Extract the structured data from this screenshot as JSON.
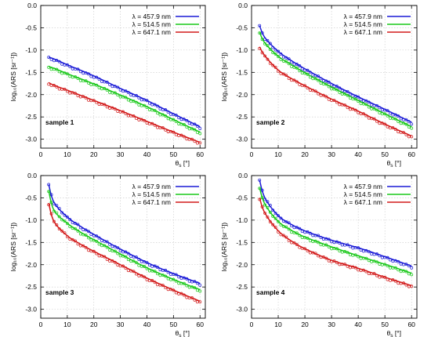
{
  "chart_data": [
    {
      "type": "scatter",
      "panel": "sample 1",
      "annotation": "sample 1",
      "xlabel": "θ",
      "xlabel_sub": "s",
      "xlabel_unit": " [°]",
      "ylabel": "log₁₀(ARS [sr⁻¹])",
      "xlim": [
        0,
        62
      ],
      "ylim": [
        -3.2,
        0.0
      ],
      "xticks": [
        0,
        10,
        20,
        30,
        40,
        50,
        60
      ],
      "yticks": [
        0.0,
        -0.5,
        -1.0,
        -1.5,
        -2.0,
        -2.5,
        -3.0
      ],
      "ytick_labels": [
        "0.0",
        "-0.5",
        "-1.0",
        "-1.5",
        "-2.0",
        "-2.5",
        "-3.0"
      ],
      "legend_position": "top-right",
      "series": [
        {
          "name": "λ = 457.9 nm",
          "color": "#1a1ad6",
          "x": [
            3,
            5,
            10,
            20,
            30,
            40,
            50,
            60
          ],
          "y": [
            -1.16,
            -1.2,
            -1.33,
            -1.58,
            -1.86,
            -2.13,
            -2.43,
            -2.72
          ]
        },
        {
          "name": "λ = 514.5 nm",
          "color": "#19c819",
          "x": [
            3,
            5,
            10,
            20,
            30,
            40,
            50,
            60
          ],
          "y": [
            -1.37,
            -1.41,
            -1.53,
            -1.76,
            -2.01,
            -2.27,
            -2.56,
            -2.84
          ]
        },
        {
          "name": "λ = 647.1 nm",
          "color": "#d21a1a",
          "x": [
            3,
            5,
            10,
            20,
            30,
            40,
            50,
            60
          ],
          "y": [
            -1.73,
            -1.79,
            -1.9,
            -2.13,
            -2.36,
            -2.6,
            -2.84,
            -3.07
          ]
        }
      ]
    },
    {
      "type": "scatter",
      "panel": "sample 2",
      "annotation": "sample 2",
      "xlabel": "θ",
      "xlabel_sub": "s",
      "xlabel_unit": " [°]",
      "ylabel": "log₁₀(ARS [sr⁻¹])",
      "xlim": [
        0,
        62
      ],
      "ylim": [
        -3.2,
        0.0
      ],
      "xticks": [
        0,
        10,
        20,
        30,
        40,
        50,
        60
      ],
      "yticks": [
        0.0,
        -0.5,
        -1.0,
        -1.5,
        -2.0,
        -2.5,
        -3.0
      ],
      "ytick_labels": [
        "0.0",
        "-0.5",
        "-1.0",
        "-1.5",
        "-2.0",
        "-2.5",
        "-3.0"
      ],
      "legend_position": "top-right",
      "series": [
        {
          "name": "λ = 457.9 nm",
          "color": "#1a1ad6",
          "x": [
            3,
            5,
            10,
            15,
            20,
            30,
            40,
            50,
            60
          ],
          "y": [
            -0.45,
            -0.72,
            -1.03,
            -1.24,
            -1.42,
            -1.75,
            -2.05,
            -2.33,
            -2.62
          ]
        },
        {
          "name": "λ = 514.5 nm",
          "color": "#19c819",
          "x": [
            3,
            5,
            10,
            15,
            20,
            30,
            40,
            50,
            60
          ],
          "y": [
            -0.6,
            -0.84,
            -1.14,
            -1.33,
            -1.51,
            -1.83,
            -2.13,
            -2.43,
            -2.72
          ]
        },
        {
          "name": "λ = 647.1 nm",
          "color": "#d21a1a",
          "x": [
            3,
            5,
            10,
            15,
            20,
            30,
            40,
            50,
            60
          ],
          "y": [
            -0.93,
            -1.13,
            -1.45,
            -1.64,
            -1.8,
            -2.1,
            -2.37,
            -2.66,
            -2.93
          ]
        }
      ]
    },
    {
      "type": "scatter",
      "panel": "sample 3",
      "annotation": "sample 3",
      "xlabel": "θ",
      "xlabel_sub": "s",
      "xlabel_unit": " [°]",
      "ylabel": "log₁₀(ARS [sr⁻¹])",
      "xlim": [
        0,
        62
      ],
      "ylim": [
        -3.2,
        0.0
      ],
      "xticks": [
        0,
        10,
        20,
        30,
        40,
        50,
        60
      ],
      "yticks": [
        0.0,
        -0.5,
        -1.0,
        -1.5,
        -2.0,
        -2.5,
        -3.0
      ],
      "ytick_labels": [
        "0.0",
        "-0.5",
        "-1.0",
        "-1.5",
        "-2.0",
        "-2.5",
        "-3.0"
      ],
      "legend_position": "top-right",
      "series": [
        {
          "name": "λ = 457.9 nm",
          "color": "#1a1ad6",
          "x": [
            3,
            5,
            10,
            15,
            20,
            30,
            40,
            50,
            60
          ],
          "y": [
            -0.2,
            -0.6,
            -0.93,
            -1.14,
            -1.32,
            -1.65,
            -1.95,
            -2.2,
            -2.42
          ]
        },
        {
          "name": "λ = 514.5 nm",
          "color": "#19c819",
          "x": [
            3,
            5,
            10,
            15,
            20,
            30,
            40,
            50,
            60
          ],
          "y": [
            -0.34,
            -0.78,
            -1.07,
            -1.27,
            -1.44,
            -1.76,
            -2.07,
            -2.33,
            -2.56
          ]
        },
        {
          "name": "λ = 647.1 nm",
          "color": "#d21a1a",
          "x": [
            3,
            5,
            10,
            15,
            20,
            30,
            40,
            50,
            60
          ],
          "y": [
            -0.62,
            -1.03,
            -1.35,
            -1.54,
            -1.7,
            -2.0,
            -2.3,
            -2.57,
            -2.82
          ]
        }
      ]
    },
    {
      "type": "scatter",
      "panel": "sample 4",
      "annotation": "sample 4",
      "xlabel": "θ",
      "xlabel_sub": "s",
      "xlabel_unit": " [°]",
      "ylabel": "log₁₀(ARS [sr⁻¹])",
      "xlim": [
        0,
        62
      ],
      "ylim": [
        -3.2,
        0.0
      ],
      "xticks": [
        0,
        10,
        20,
        30,
        40,
        50,
        60
      ],
      "yticks": [
        0.0,
        -0.5,
        -1.0,
        -1.5,
        -2.0,
        -2.5,
        -3.0
      ],
      "ytick_labels": [
        "0.0",
        "-0.5",
        "-1.0",
        "-1.5",
        "-2.0",
        "-2.5",
        "-3.0"
      ],
      "legend_position": "top-right",
      "series": [
        {
          "name": "λ = 457.9 nm",
          "color": "#1a1ad6",
          "x": [
            3,
            5,
            10,
            15,
            20,
            30,
            40,
            50,
            60
          ],
          "y": [
            -0.1,
            -0.5,
            -0.9,
            -1.1,
            -1.24,
            -1.45,
            -1.62,
            -1.82,
            -2.03
          ]
        },
        {
          "name": "λ = 514.5 nm",
          "color": "#19c819",
          "x": [
            3,
            5,
            10,
            15,
            20,
            30,
            40,
            50,
            60
          ],
          "y": [
            -0.27,
            -0.64,
            -1.03,
            -1.23,
            -1.38,
            -1.6,
            -1.8,
            -1.99,
            -2.19
          ]
        },
        {
          "name": "λ = 647.1 nm",
          "color": "#d21a1a",
          "x": [
            3,
            5,
            10,
            15,
            20,
            30,
            40,
            50,
            60
          ],
          "y": [
            -0.5,
            -0.84,
            -1.24,
            -1.47,
            -1.64,
            -1.9,
            -2.08,
            -2.28,
            -2.47
          ]
        }
      ]
    }
  ]
}
